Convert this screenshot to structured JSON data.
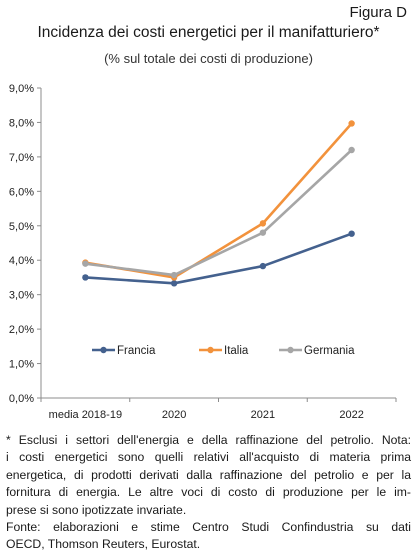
{
  "header": {
    "figure_label": "Figura D",
    "title": "Incidenza dei costi energetici per il manifatturiero*",
    "subtitle": "(% sul totale dei costi di produzione)"
  },
  "chart_data": {
    "type": "line",
    "categories": [
      "media 2018-19",
      "2020",
      "2021",
      "2022"
    ],
    "series": [
      {
        "name": "Francia",
        "color": "#44618e",
        "values": [
          3.5,
          3.33,
          3.83,
          4.77
        ]
      },
      {
        "name": "Italia",
        "color": "#f2923c",
        "values": [
          3.93,
          3.5,
          5.07,
          7.97
        ]
      },
      {
        "name": "Germania",
        "color": "#a6a6a6",
        "values": [
          3.9,
          3.57,
          4.8,
          7.2
        ]
      }
    ],
    "y_ticks": [
      "0,0%",
      "1,0%",
      "2,0%",
      "3,0%",
      "4,0%",
      "5,0%",
      "6,0%",
      "7,0%",
      "8,0%",
      "9,0%"
    ],
    "ylim": [
      0,
      9
    ],
    "grid": false,
    "legend_position": "inside-bottom"
  },
  "notes": {
    "line1": "* Esclusi i settori dell'energia e della raffinazione del petrolio. Nota:",
    "line2": "i costi energetici sono quelli relativi all'acquisto di materia prima",
    "line3": "energetica, di prodotti derivati dalla raffinazione del petrolio e per la",
    "line4": "fornitura di energia. Le altre voci di costo di produzione per le im-",
    "line5": "prese si sono ipotizzate invariate.",
    "line6": "Fonte: elaborazioni e stime Centro Studi Confindustria su dati",
    "line7": "OECD, Thomson Reuters, Eurostat."
  }
}
